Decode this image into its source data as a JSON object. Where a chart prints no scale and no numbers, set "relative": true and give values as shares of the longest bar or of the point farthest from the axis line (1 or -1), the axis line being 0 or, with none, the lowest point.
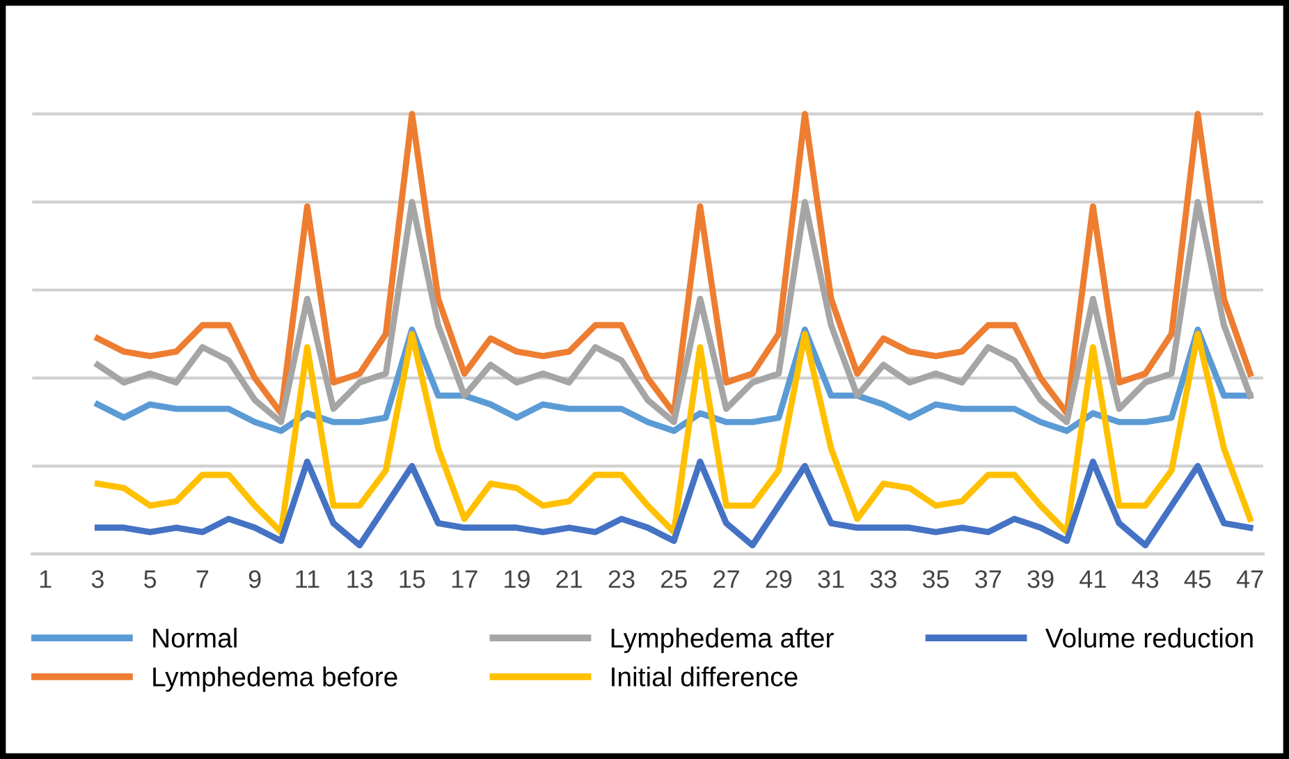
{
  "chart_data": {
    "type": "line",
    "relative": true,
    "grid": "y",
    "legend": "bottom",
    "marker": "none",
    "line_style": "solid",
    "categories": [
      "1",
      null,
      "3",
      null,
      "5",
      null,
      "7",
      null,
      "9",
      null,
      "11",
      null,
      "13",
      null,
      "15",
      null,
      "17",
      null,
      "19",
      null,
      "21",
      null,
      "23",
      null,
      "25",
      null,
      "27",
      null,
      "29",
      null,
      "31",
      null,
      "33",
      null,
      "35",
      null,
      "37",
      null,
      "39",
      null,
      "41",
      null,
      "43",
      null,
      "45",
      null,
      "47"
    ],
    "series": [
      {
        "name": "Normal",
        "color": "#5b9bd5",
        "values": [
          null,
          null,
          0.34,
          0.31,
          0.34,
          0.33,
          0.33,
          0.33,
          0.3,
          0.28,
          0.32,
          0.3,
          0.3,
          0.31,
          0.51,
          0.36,
          0.36,
          0.34,
          0.31,
          0.34,
          0.33,
          0.33,
          0.33,
          0.3,
          0.28,
          0.32,
          0.3,
          0.3,
          0.31,
          0.51,
          0.36,
          0.36,
          0.34,
          0.31,
          0.34,
          0.33,
          0.33,
          0.33,
          0.3,
          0.28,
          0.32,
          0.3,
          0.3,
          0.31,
          0.51,
          0.36,
          0.36
        ]
      },
      {
        "name": "Lymphedema before",
        "color": "#ed7d31",
        "values": [
          null,
          null,
          0.49,
          0.46,
          0.45,
          0.46,
          0.52,
          0.52,
          0.4,
          0.32,
          0.79,
          0.39,
          0.41,
          0.5,
          1,
          0.58,
          0.41,
          0.49,
          0.46,
          0.45,
          0.46,
          0.52,
          0.52,
          0.4,
          0.32,
          0.79,
          0.39,
          0.41,
          0.5,
          1,
          0.58,
          0.41,
          0.49,
          0.46,
          0.45,
          0.46,
          0.52,
          0.52,
          0.4,
          0.32,
          0.79,
          0.39,
          0.41,
          0.5,
          1,
          0.58,
          0.41
        ]
      },
      {
        "name": "Lymphedema after",
        "color": "#a5a5a5",
        "values": [
          null,
          null,
          0.43,
          0.39,
          0.41,
          0.39,
          0.47,
          0.44,
          0.35,
          0.3,
          0.58,
          0.33,
          0.39,
          0.41,
          0.8,
          0.52,
          0.36,
          0.43,
          0.39,
          0.41,
          0.39,
          0.47,
          0.44,
          0.35,
          0.3,
          0.58,
          0.33,
          0.39,
          0.41,
          0.8,
          0.52,
          0.36,
          0.43,
          0.39,
          0.41,
          0.39,
          0.47,
          0.44,
          0.35,
          0.3,
          0.58,
          0.33,
          0.39,
          0.41,
          0.8,
          0.52,
          0.36
        ]
      },
      {
        "name": "Initial difference",
        "color": "#ffc000",
        "values": [
          null,
          null,
          0.16,
          0.15,
          0.11,
          0.12,
          0.18,
          0.18,
          0.11,
          0.05,
          0.47,
          0.11,
          0.11,
          0.19,
          0.5,
          0.24,
          0.08,
          0.16,
          0.15,
          0.11,
          0.12,
          0.18,
          0.18,
          0.11,
          0.05,
          0.47,
          0.11,
          0.11,
          0.19,
          0.5,
          0.24,
          0.08,
          0.16,
          0.15,
          0.11,
          0.12,
          0.18,
          0.18,
          0.11,
          0.05,
          0.47,
          0.11,
          0.11,
          0.19,
          0.5,
          0.24,
          0.08
        ]
      },
      {
        "name": "Volume reduction",
        "color": "#4472c4",
        "values": [
          null,
          null,
          0.06,
          0.06,
          0.05,
          0.06,
          0.05,
          0.08,
          0.06,
          0.03,
          0.21,
          0.07,
          0.02,
          0.11,
          0.2,
          0.07,
          0.06,
          0.06,
          0.06,
          0.05,
          0.06,
          0.05,
          0.08,
          0.06,
          0.03,
          0.21,
          0.07,
          0.02,
          0.11,
          0.2,
          0.07,
          0.06,
          0.06,
          0.06,
          0.05,
          0.06,
          0.05,
          0.08,
          0.06,
          0.03,
          0.21,
          0.07,
          0.02,
          0.11,
          0.2,
          0.07,
          0.06
        ]
      }
    ]
  }
}
